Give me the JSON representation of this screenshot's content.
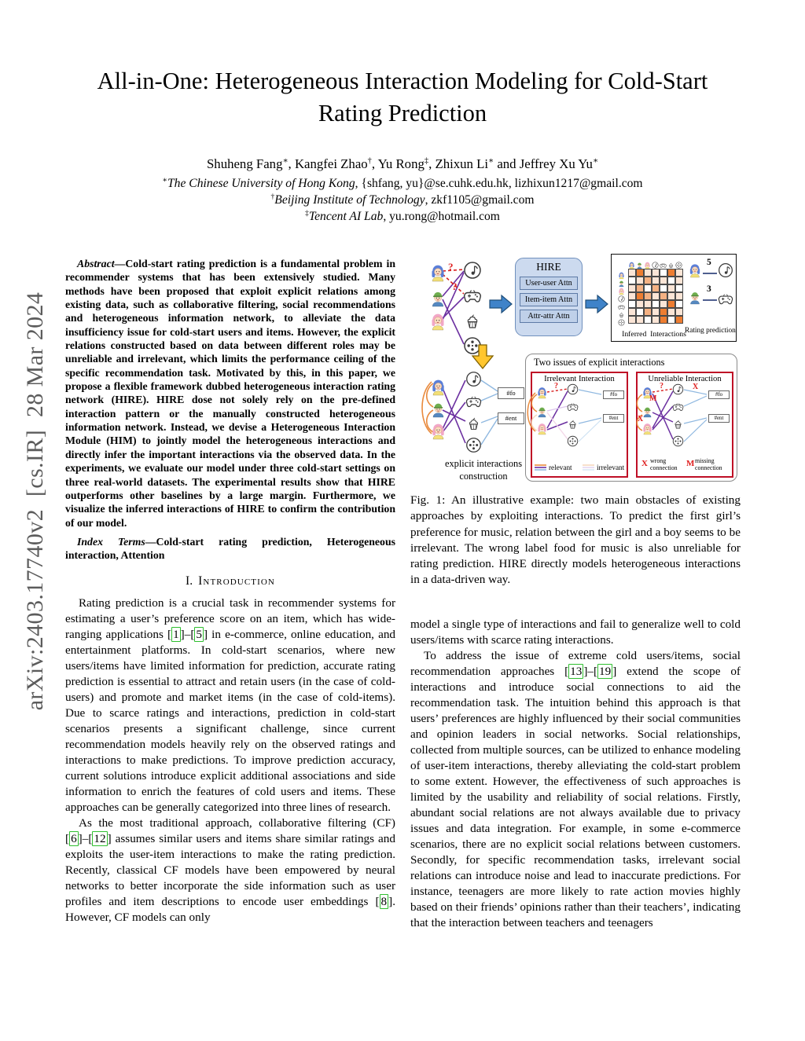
{
  "tokens": {
    "cite_open": "[",
    "cite_close": "]"
  },
  "watermark": "arXiv:2403.17740v2  [cs.IR]  28 Mar 2024",
  "title": "All-in-One: Heterogeneous Interaction Modeling for Cold-Start Rating Prediction",
  "authors": [
    {
      "t": "Shuheng Fang"
    },
    {
      "s": "∗"
    },
    {
      "t": ", Kangfei Zhao"
    },
    {
      "s": "†"
    },
    {
      "t": ", Yu Rong"
    },
    {
      "s": "‡"
    },
    {
      "t": ", Zhixun Li"
    },
    {
      "s": "∗"
    },
    {
      "t": " and Jeffrey Xu Yu"
    },
    {
      "s": "∗"
    }
  ],
  "affiliations": [
    [
      {
        "s": "∗"
      },
      {
        "i": "The Chinese University of Hong Kong"
      },
      {
        "t": ", {shfang, yu}@se.cuhk.edu.hk, lizhixun1217@gmail.com"
      }
    ],
    [
      {
        "s": "†"
      },
      {
        "i": "Beijing Institute of Technology"
      },
      {
        "t": ", zkf1105@gmail.com"
      }
    ],
    [
      {
        "s": "‡"
      },
      {
        "i": "Tencent AI Lab"
      },
      {
        "t": ", yu.rong@hotmail.com"
      }
    ]
  ],
  "abstract_segs": [
    {
      "i": "Abstract"
    },
    {
      "t": "—Cold-start rating prediction is a fundamental problem in recommender systems that has been extensively studied. Many methods have been proposed that exploit explicit relations among existing data, such as collaborative filtering, social recommendations and heterogeneous information network, to alleviate the data insufficiency issue for cold-start users and items. However, the explicit relations constructed based on data between different roles may be unreliable and irrelevant, which limits the performance ceiling of the specific recommendation task. Motivated by this, in this paper, we propose a flexible framework dubbed heterogeneous interaction rating network (HIRE). HIRE dose not solely rely on the pre-defined interaction pattern or the manually constructed heterogeneous information network. Instead, we devise a Heterogeneous Interaction Module (HIM) to jointly model the heterogeneous interactions and directly infer the important interactions via the observed data. In the experiments, we evaluate our model under three cold-start settings on three real-world datasets. The experimental results show that HIRE outperforms other baselines by a large margin. Furthermore, we visualize the inferred interactions of HIRE to confirm the contribution of our model."
    }
  ],
  "index_terms_segs": [
    {
      "i": "Index Terms"
    },
    {
      "t": "—Cold-start rating prediction, Heterogeneous interaction, Attention"
    }
  ],
  "intro_heading": {
    "num": "I.",
    "title": "Introduction"
  },
  "left_paragraphs": [
    [
      {
        "t": "Rating prediction is a crucial task in recommender systems for estimating a user’s preference score on an item, which has wide-ranging applications "
      },
      {
        "c": "1"
      },
      {
        "t": "–"
      },
      {
        "c": "5"
      },
      {
        "t": " in e-commerce, online education, and entertainment platforms. In cold-start scenarios, where new users/items have limited information for prediction, accurate rating prediction is essential to attract and retain users (in the case of cold-users) and promote and market items (in the case of cold-items). Due to scarce ratings and interactions, prediction in cold-start scenarios presents a significant challenge, since current recommendation models heavily rely on the observed ratings and interactions to make predictions. To improve prediction accuracy, current solutions introduce explicit additional associations and side information to enrich the features of cold users and items. These approaches can be generally categorized into three lines of research."
      }
    ],
    [
      {
        "t": "As the most traditional approach, collaborative filtering (CF) "
      },
      {
        "c": "6"
      },
      {
        "t": "–"
      },
      {
        "c": "12"
      },
      {
        "t": " assumes similar users and items share similar ratings and exploits the user-item interactions to make the rating prediction. Recently, classical CF models have been empowered by neural networks to better incorporate the side information such as user profiles and item descriptions to encode user embeddings "
      },
      {
        "c": "8"
      },
      {
        "t": ". However, CF models can only"
      }
    ]
  ],
  "right_paragraphs": [
    [
      {
        "t": "model a single type of interactions and fail to generalize well to cold users/items with scarce rating interactions."
      }
    ],
    [
      {
        "t": "To address the issue of extreme cold users/items, social recommendation approaches "
      },
      {
        "c": "13"
      },
      {
        "t": "–"
      },
      {
        "c": "19"
      },
      {
        "t": " extend the scope of interactions and introduce social connections to aid the recommendation task. The intuition behind this approach is that users’ preferences are highly influenced by their social communities and opinion leaders in social networks. Social relationships, collected from multiple sources, can be utilized to enhance modeling of user-item interactions, thereby alleviating the cold-start problem to some extent. However, the effectiveness of such approaches is limited by the usability and reliability of social relations. Firstly, abundant social relations are not always available due to privacy issues and data integration. For example, in some e-commerce scenarios, there are no explicit social relations between customers. Secondly, for specific recommendation tasks, irrelevant social relations can introduce noise and lead to inaccurate predictions. For instance, teenagers are more likely to rate action movies highly based on their friends’ opinions rather than their teachers’, indicating that the interaction between teachers and teenagers"
      }
    ]
  ],
  "figure": {
    "caption": "Fig. 1: An illustrative example: two main obstacles of existing approaches by exploiting interactions. To predict the first girl’s preference for music, relation between the girl and a boy seems to be irrelevant. The wrong label food for music is also unreliable for rating prediction. HIRE directly models heterogeneous interactions in a data-driven way.",
    "marks": {
      "question": "?"
    },
    "hire": {
      "title": "HIRE",
      "modules": [
        "User-user Attn",
        "Item-item Attn",
        "Attr-attr Attn"
      ]
    },
    "result": {
      "inferred_label": "Inferred  Interactions",
      "rating_label": "Rating prediction",
      "ratings": [
        "5",
        "3"
      ]
    },
    "construction_label": "explicit interactions construction",
    "attr_tags": [
      "#fo",
      "#ent"
    ],
    "issues": {
      "title": "Two issues of explicit interactions",
      "irrelevant": {
        "title": "Irrelevant Interaction",
        "legend_relevant": "relevant",
        "legend_irrelevant": "irrelevant"
      },
      "unreliable": {
        "title": "Unreliable Interaction",
        "wrong_mark": "X",
        "wrong_label": "wrong connection",
        "missing_mark": "M",
        "missing_label": "missing connection"
      }
    },
    "heatmap": {
      "type": "heatmap",
      "rows": [
        "girl-blue",
        "boy-green",
        "girl-pink",
        "music",
        "game",
        "cupcake",
        "film"
      ],
      "cols": [
        "girl-blue",
        "boy-green",
        "girl-pink",
        "music",
        "game",
        "cupcake",
        "film"
      ],
      "values": [
        [
          1,
          3,
          1,
          1,
          0,
          3,
          1
        ],
        [
          0,
          1,
          2,
          1,
          1,
          0,
          1
        ],
        [
          1,
          2,
          0,
          2,
          0,
          1,
          0
        ],
        [
          1,
          3,
          2,
          1,
          2,
          1,
          1
        ],
        [
          0,
          1,
          1,
          0,
          1,
          3,
          0
        ],
        [
          1,
          0,
          2,
          1,
          3,
          1,
          1
        ],
        [
          1,
          1,
          0,
          1,
          3,
          0,
          3
        ]
      ],
      "palette": [
        "#ffffff",
        "#fbe5d6",
        "#f4b183",
        "#ed7d31"
      ]
    }
  }
}
